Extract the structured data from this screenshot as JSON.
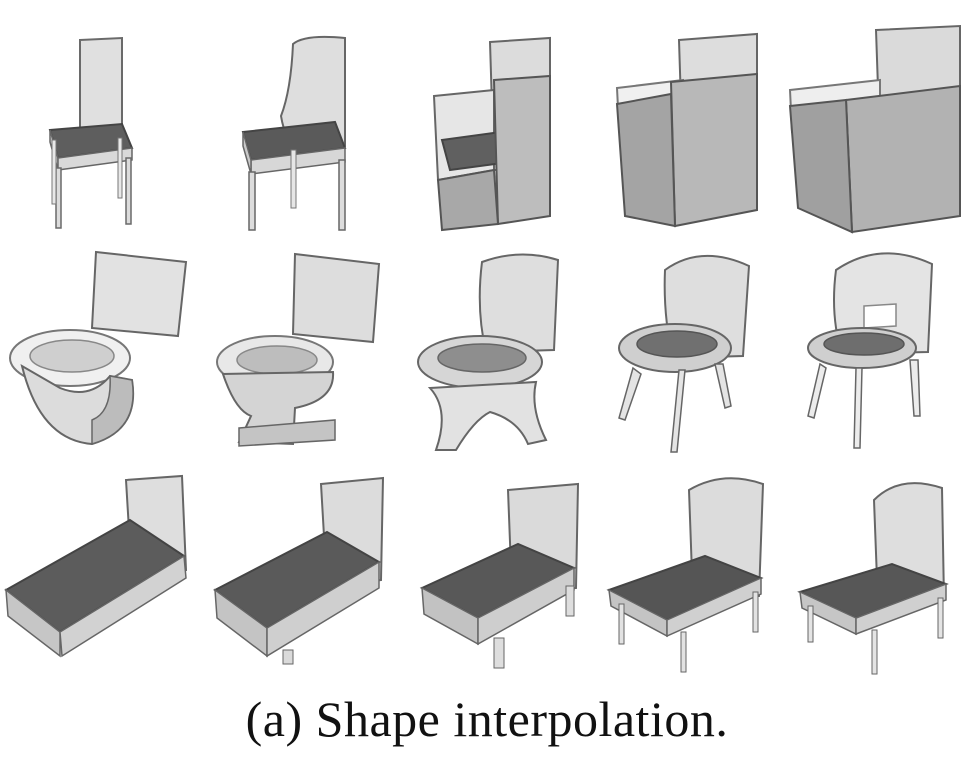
{
  "figure": {
    "caption": "(a) Shape interpolation.",
    "rows": [
      {
        "shapes": [
          "chair-icon",
          "chair-icon",
          "armchair-icon",
          "armchair-icon",
          "armchair-icon"
        ]
      },
      {
        "shapes": [
          "toilet-icon",
          "toilet-icon",
          "shell-chair-icon",
          "shell-chair-icon",
          "shell-chair-icon"
        ]
      },
      {
        "shapes": [
          "chaise-lounge-icon",
          "chaise-lounge-icon",
          "lounge-chair-icon",
          "lounge-chair-icon",
          "lounge-chair-icon"
        ]
      }
    ],
    "colors": {
      "light": "#e4e4e4",
      "mid": "#bdbdbd",
      "dark": "#6f6f6f",
      "outline": "#555555"
    }
  }
}
